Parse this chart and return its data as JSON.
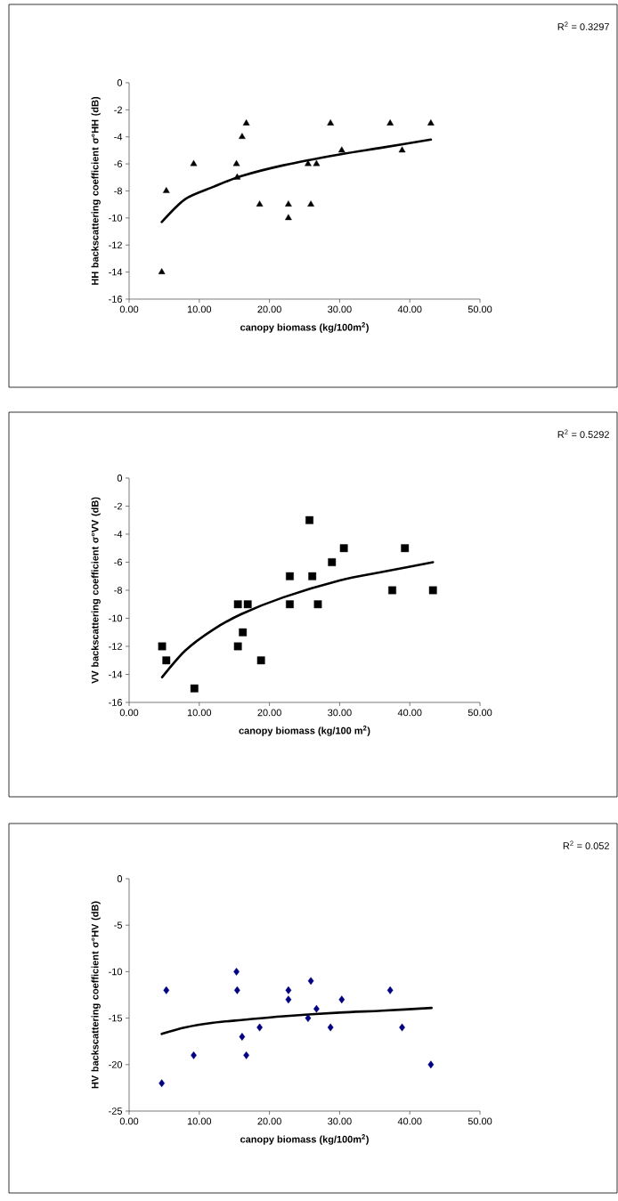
{
  "chart_data": [
    {
      "type": "scatter",
      "ylabel": "HH backscattering coefficient σ°HH (dB)",
      "xlabel": "canopy biomass (kg/100m$^{2}$)",
      "annotations": [
        "R$^{2}$ = 0.3297"
      ],
      "xlim": [
        0,
        50
      ],
      "ylim": [
        -16,
        0
      ],
      "xticks": [
        {
          "value": 0,
          "label": "0.00"
        },
        {
          "value": 10,
          "label": "10.00"
        },
        {
          "value": 20,
          "label": "20.00"
        },
        {
          "value": 30,
          "label": "30.00"
        },
        {
          "value": 40,
          "label": "40.00"
        },
        {
          "value": 50,
          "label": "50.00"
        }
      ],
      "yticks": [
        -16,
        -14,
        -12,
        -10,
        -8,
        -6,
        -4,
        -2,
        0
      ],
      "series": [
        {
          "type": "scatter",
          "marker": "triangle",
          "color": "#000000",
          "x": [
            4.65,
            5.3,
            9.2,
            15.3,
            15.4,
            16.1,
            16.7,
            18.6,
            22.7,
            22.7,
            25.5,
            25.9,
            26.7,
            28.7,
            30.3,
            37.2,
            38.9,
            43.0
          ],
          "values": [
            -14,
            -8,
            -6,
            -6,
            -7,
            -4,
            -3,
            -9,
            -9,
            -10,
            -6,
            -9,
            -6,
            -3,
            -5,
            -3,
            -5,
            -3
          ]
        },
        {
          "type": "line",
          "color": "#000000",
          "x": [
            4.65,
            8,
            12,
            16,
            22,
            30,
            36,
            43
          ],
          "values": [
            -10.3,
            -8.6,
            -7.7,
            -6.9,
            -6.1,
            -5.3,
            -4.8,
            -4.2
          ]
        }
      ]
    },
    {
      "type": "scatter",
      "ylabel": "VV backscattering coefficient σ°VV (dB)",
      "xlabel": "canopy biomass (kg/100 m$^{2}$)",
      "annotations": [
        "R$^{2}$ = 0.5292"
      ],
      "xlim": [
        0,
        50
      ],
      "ylim": [
        -16,
        0
      ],
      "xticks": [
        {
          "value": 0,
          "label": "0.00"
        },
        {
          "value": 10,
          "label": "10.00"
        },
        {
          "value": 20,
          "label": "20.00"
        },
        {
          "value": 30,
          "label": "30.00"
        },
        {
          "value": 40,
          "label": "40.00"
        },
        {
          "value": 50,
          "label": "50.00"
        }
      ],
      "yticks": [
        -16,
        -14,
        -12,
        -10,
        -8,
        -6,
        -4,
        -2,
        0
      ],
      "series": [
        {
          "type": "scatter",
          "marker": "square",
          "color": "#000000",
          "x": [
            4.7,
            5.3,
            9.3,
            15.5,
            15.5,
            16.2,
            16.9,
            18.8,
            22.9,
            22.9,
            25.7,
            26.1,
            26.9,
            28.9,
            30.6,
            37.5,
            39.3,
            43.3
          ],
          "values": [
            -12,
            -13,
            -15,
            -12,
            -9,
            -11,
            -9,
            -13,
            -7,
            -9,
            -3,
            -7,
            -9,
            -6,
            -5,
            -8,
            -5,
            -8
          ]
        },
        {
          "type": "line",
          "color": "#000000",
          "x": [
            4.7,
            8,
            12,
            16,
            22,
            30,
            36,
            43.3
          ],
          "values": [
            -14.2,
            -12.3,
            -10.8,
            -9.7,
            -8.5,
            -7.3,
            -6.7,
            -6.0
          ]
        }
      ]
    },
    {
      "type": "scatter",
      "ylabel": "HV backscattering coefficient σ°HV (dB)",
      "xlabel": "canopy biomass (kg/100m$^{2}$)",
      "annotations": [
        "R$^{2}$ = 0.052"
      ],
      "xlim": [
        0,
        50
      ],
      "ylim": [
        -25,
        0
      ],
      "xticks": [
        {
          "value": 0,
          "label": "0.00"
        },
        {
          "value": 10,
          "label": "10.00"
        },
        {
          "value": 20,
          "label": "20.00"
        },
        {
          "value": 30,
          "label": "30.00"
        },
        {
          "value": 40,
          "label": "40.00"
        },
        {
          "value": 50,
          "label": "50.00"
        }
      ],
      "yticks": [
        -25,
        -20,
        -15,
        -10,
        -5,
        0
      ],
      "series": [
        {
          "type": "scatter",
          "marker": "diamond",
          "color": "#000080",
          "x": [
            4.65,
            5.3,
            9.2,
            15.3,
            15.4,
            16.1,
            16.7,
            18.6,
            22.7,
            22.7,
            25.5,
            25.9,
            26.7,
            28.7,
            30.3,
            37.2,
            38.9,
            43.0
          ],
          "values": [
            -22,
            -12,
            -19,
            -10,
            -12,
            -17,
            -19,
            -16,
            -12,
            -13,
            -15,
            -11,
            -14,
            -16,
            -13,
            -12,
            -16,
            -20
          ]
        },
        {
          "type": "line",
          "color": "#000000",
          "x": [
            4.65,
            8,
            12,
            16,
            22,
            30,
            36,
            43.1
          ],
          "values": [
            -16.7,
            -16.0,
            -15.5,
            -15.2,
            -14.8,
            -14.4,
            -14.2,
            -13.9
          ]
        }
      ]
    }
  ]
}
